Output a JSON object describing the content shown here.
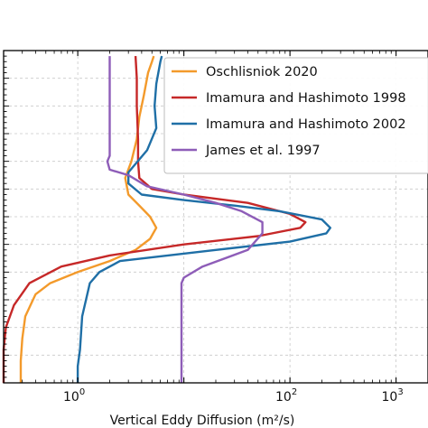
{
  "chart_data": {
    "type": "line",
    "xlabel": "Vertical Eddy Diffusion (m²/s)",
    "ylabel": "",
    "x_scale": "log",
    "xlim": [
      0.2,
      2000
    ],
    "ylim": [
      0,
      60
    ],
    "x_major_ticks": [
      {
        "value": 1,
        "label": "10",
        "exp": "0"
      },
      {
        "value": 100,
        "label": "10",
        "exp": "2"
      },
      {
        "value": 1000,
        "label": "10",
        "exp": "3"
      }
    ],
    "grid": true,
    "legend": "top-right",
    "series": [
      {
        "name": "Oschlisniok 2020",
        "color": "#f39a2b",
        "points": [
          [
            0.29,
            0
          ],
          [
            0.29,
            4
          ],
          [
            0.3,
            8
          ],
          [
            0.32,
            12
          ],
          [
            0.4,
            16
          ],
          [
            0.55,
            18
          ],
          [
            1.0,
            20
          ],
          [
            2.0,
            22
          ],
          [
            3.5,
            24
          ],
          [
            4.8,
            26
          ],
          [
            5.5,
            28
          ],
          [
            4.8,
            30
          ],
          [
            3.8,
            32
          ],
          [
            3.0,
            34
          ],
          [
            2.8,
            37
          ],
          [
            3.2,
            40
          ],
          [
            3.6,
            44
          ],
          [
            3.8,
            48
          ],
          [
            4.2,
            52
          ],
          [
            4.6,
            56
          ],
          [
            5.0,
            58
          ],
          [
            5.2,
            59
          ]
        ]
      },
      {
        "name": "Imamura and Hashimoto 1998",
        "color": "#c62828",
        "points": [
          [
            0.2,
            0
          ],
          [
            0.2,
            6
          ],
          [
            0.21,
            10
          ],
          [
            0.25,
            14
          ],
          [
            0.35,
            18
          ],
          [
            0.7,
            21
          ],
          [
            2.0,
            23
          ],
          [
            10,
            25
          ],
          [
            50,
            26.5
          ],
          [
            125,
            28
          ],
          [
            140,
            29
          ],
          [
            100,
            30.5
          ],
          [
            40,
            32.5
          ],
          [
            10,
            34
          ],
          [
            5,
            35
          ],
          [
            3.8,
            37
          ],
          [
            3.7,
            40
          ],
          [
            3.7,
            44
          ],
          [
            3.6,
            50
          ],
          [
            3.6,
            55
          ],
          [
            3.5,
            59
          ]
        ]
      },
      {
        "name": "Imamura and Hashimoto 2002",
        "color": "#1f6fa6",
        "points": [
          [
            1.0,
            0
          ],
          [
            1.0,
            3
          ],
          [
            1.05,
            6
          ],
          [
            1.1,
            12
          ],
          [
            1.3,
            18
          ],
          [
            1.6,
            20
          ],
          [
            2.5,
            22
          ],
          [
            20,
            24
          ],
          [
            100,
            25.5
          ],
          [
            220,
            27
          ],
          [
            240,
            28
          ],
          [
            200,
            29.5
          ],
          [
            80,
            31
          ],
          [
            30,
            32
          ],
          [
            10,
            33
          ],
          [
            4,
            34
          ],
          [
            3.0,
            36
          ],
          [
            3.0,
            38
          ],
          [
            4.5,
            42
          ],
          [
            5.5,
            46
          ],
          [
            5.3,
            50
          ],
          [
            5.5,
            54
          ],
          [
            6.0,
            58
          ],
          [
            6.2,
            59
          ]
        ]
      },
      {
        "name": "James et al. 1997",
        "color": "#8e5db8",
        "points": [
          [
            9.5,
            0
          ],
          [
            9.5,
            10
          ],
          [
            9.5,
            18
          ],
          [
            10,
            19
          ],
          [
            15,
            21
          ],
          [
            40,
            24
          ],
          [
            55,
            27
          ],
          [
            55,
            29
          ],
          [
            35,
            31
          ],
          [
            20,
            32.5
          ],
          [
            10,
            34
          ],
          [
            4.5,
            35.5
          ],
          [
            3,
            37.5
          ],
          [
            2.0,
            38.5
          ],
          [
            1.9,
            40
          ],
          [
            2.0,
            41
          ],
          [
            2.0,
            42
          ],
          [
            2.0,
            50
          ],
          [
            2.0,
            59
          ]
        ]
      }
    ]
  }
}
